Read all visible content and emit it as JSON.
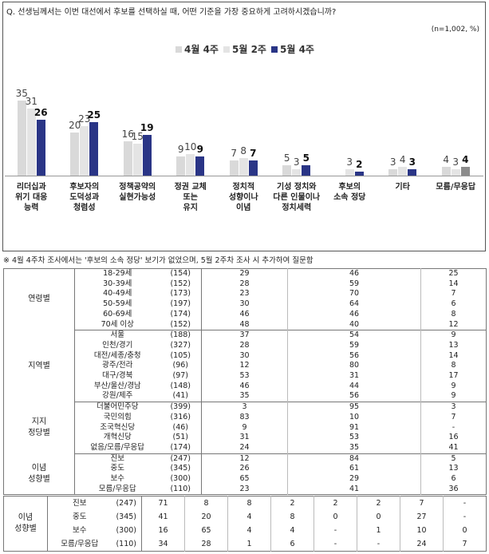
{
  "chart_data": {
    "type": "bar",
    "title": "Q. 선생님께서는 이번 대선에서 후보를 선택하실 때, 어떤 기준을 가장 중요하게 고려하시겠습니까?",
    "subtitle": "(n=1,002, %)",
    "categories": [
      "리더십과\n위기 대응\n능력",
      "후보자의\n도덕성과\n청렴성",
      "정책공약의\n실현가능성",
      "정권 교체\n또는\n유지",
      "정치적\n성향이나\n이념",
      "기성 정치와\n다른 인물이나\n정치세력",
      "후보의\n소속 정당",
      "기타",
      "모름/무응답"
    ],
    "series": [
      {
        "name": "4월 4주",
        "color": "#d9d9d9",
        "values": [
          35,
          20,
          16,
          9,
          7,
          5,
          null,
          3,
          4
        ]
      },
      {
        "name": "5월 2주",
        "color": "#e4e4e4",
        "values": [
          31,
          23,
          15,
          10,
          8,
          3,
          3,
          4,
          3
        ]
      },
      {
        "name": "5월 4주",
        "color": "#2a3586",
        "values": [
          26,
          25,
          19,
          9,
          7,
          5,
          2,
          3,
          4
        ],
        "colors": [
          "#2a3586",
          "#2a3586",
          "#2a3586",
          "#2a3586",
          "#2a3586",
          "#2a3586",
          "#2a3586",
          "#2a3586",
          "#8c8c8c"
        ]
      }
    ],
    "note": "※ 4월 4주차 조사에서는 '후보의 소속 정당' 보기가 없었으며, 5월 2주차 조사 시 추가하여 질문함"
  },
  "table": {
    "groups": [
      {
        "label": "연령별",
        "rows": [
          [
            "18-29세",
            "(154)",
            29,
            46,
            25
          ],
          [
            "30-39세",
            "(152)",
            28,
            59,
            14
          ],
          [
            "40-49세",
            "(173)",
            23,
            70,
            7
          ],
          [
            "50-59세",
            "(197)",
            30,
            64,
            6
          ],
          [
            "60-69세",
            "(174)",
            46,
            46,
            8
          ],
          [
            "70세 이상",
            "(152)",
            48,
            40,
            12
          ]
        ]
      },
      {
        "label": "지역별",
        "rows": [
          [
            "서울",
            "(188)",
            37,
            54,
            9
          ],
          [
            "인천/경기",
            "(327)",
            28,
            59,
            13
          ],
          [
            "대전/세종/충청",
            "(105)",
            30,
            56,
            14
          ],
          [
            "광주/전라",
            "(96)",
            12,
            80,
            8
          ],
          [
            "대구/경북",
            "(97)",
            53,
            31,
            17
          ],
          [
            "부산/울산/경남",
            "(148)",
            46,
            44,
            9
          ],
          [
            "강원/제주",
            "(41)",
            35,
            56,
            9
          ]
        ]
      },
      {
        "label": "지지\n정당별",
        "rows": [
          [
            "더불어민주당",
            "(399)",
            3,
            95,
            3
          ],
          [
            "국민의힘",
            "(316)",
            83,
            10,
            7
          ],
          [
            "조국혁신당",
            "(46)",
            9,
            91,
            "-"
          ],
          [
            "개혁신당",
            "(51)",
            31,
            53,
            16
          ],
          [
            "없음/모름/무응답",
            "(174)",
            24,
            35,
            41
          ]
        ]
      },
      {
        "label": "이념\n성향별",
        "rows": [
          [
            "진보",
            "(247)",
            12,
            84,
            5
          ],
          [
            "중도",
            "(345)",
            26,
            61,
            13
          ],
          [
            "보수",
            "(300)",
            65,
            29,
            6
          ],
          [
            "모름/무응답",
            "(110)",
            23,
            41,
            36
          ]
        ]
      }
    ]
  },
  "table2": {
    "groups": [
      {
        "label": "이념\n성향별",
        "rows": [
          [
            "진보",
            "(247)",
            71,
            8,
            8,
            2,
            2,
            2,
            7,
            "-"
          ],
          [
            "중도",
            "(345)",
            41,
            20,
            4,
            8,
            0,
            0,
            27,
            "-"
          ],
          [
            "보수",
            "(300)",
            16,
            65,
            4,
            4,
            "-",
            1,
            10,
            0
          ],
          [
            "모름/무응답",
            "(110)",
            34,
            28,
            1,
            6,
            "-",
            "-",
            24,
            7
          ]
        ]
      }
    ]
  }
}
